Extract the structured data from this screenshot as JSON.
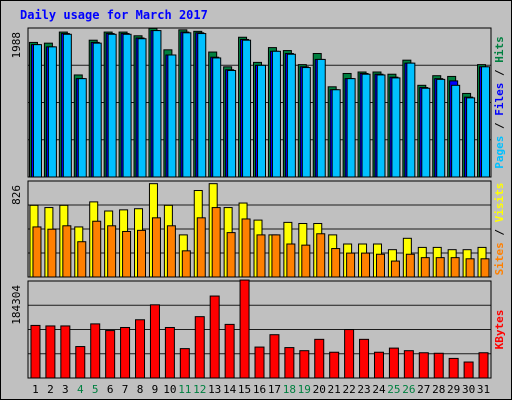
{
  "chart_data": [
    {
      "type": "bar",
      "title": "Daily usage for March 2017",
      "categories": [
        "1",
        "2",
        "3",
        "4",
        "5",
        "6",
        "7",
        "8",
        "9",
        "10",
        "11",
        "12",
        "13",
        "14",
        "15",
        "16",
        "17",
        "18",
        "19",
        "20",
        "21",
        "22",
        "23",
        "24",
        "25",
        "26",
        "27",
        "28",
        "29",
        "30",
        "31"
      ],
      "weekend_days": [
        "4",
        "5",
        "11",
        "12",
        "18",
        "19",
        "25",
        "26"
      ],
      "ymax_label": "1988",
      "ylim": [
        0,
        1988
      ],
      "legend": [
        "Pages",
        "Files",
        "Hits"
      ],
      "colors": {
        "Hits": "#008040",
        "Files": "#0000ff",
        "Pages": "#00c0ff"
      },
      "series": [
        {
          "name": "Hits",
          "values": [
            1820,
            1810,
            1960,
            1380,
            1850,
            1960,
            1960,
            1910,
            2010,
            1720,
            1990,
            1970,
            1690,
            1490,
            1890,
            1550,
            1750,
            1710,
            1520,
            1670,
            1220,
            1400,
            1420,
            1420,
            1390,
            1580,
            1240,
            1370,
            1360,
            1130,
            1520
          ]
        },
        {
          "name": "Files",
          "values": [
            1790,
            1760,
            1940,
            1330,
            1820,
            1940,
            1940,
            1880,
            1980,
            1650,
            1960,
            1950,
            1620,
            1450,
            1860,
            1510,
            1700,
            1670,
            1490,
            1590,
            1180,
            1330,
            1400,
            1390,
            1350,
            1540,
            1210,
            1330,
            1300,
            1080,
            1490
          ]
        },
        {
          "name": "Pages",
          "values": [
            1790,
            1760,
            1930,
            1330,
            1810,
            1930,
            1930,
            1870,
            1980,
            1650,
            1950,
            1940,
            1610,
            1440,
            1850,
            1510,
            1700,
            1660,
            1480,
            1590,
            1180,
            1330,
            1390,
            1380,
            1340,
            1540,
            1200,
            1320,
            1240,
            1070,
            1490
          ]
        }
      ]
    },
    {
      "type": "bar",
      "categories": [
        "1",
        "2",
        "3",
        "4",
        "5",
        "6",
        "7",
        "8",
        "9",
        "10",
        "11",
        "12",
        "13",
        "14",
        "15",
        "16",
        "17",
        "18",
        "19",
        "20",
        "21",
        "22",
        "23",
        "24",
        "25",
        "26",
        "27",
        "28",
        "29",
        "30",
        "31"
      ],
      "ymax_label": "826",
      "ylim": [
        0,
        826
      ],
      "legend": [
        "Sites",
        "Visits"
      ],
      "colors": {
        "Visits": "#ffff00",
        "Sites": "#ff8000"
      },
      "series": [
        {
          "name": "Visits",
          "values": [
            630,
            610,
            630,
            440,
            660,
            580,
            590,
            600,
            820,
            630,
            370,
            760,
            820,
            610,
            650,
            500,
            370,
            480,
            470,
            470,
            370,
            290,
            290,
            290,
            240,
            340,
            260,
            260,
            240,
            240,
            260
          ]
        },
        {
          "name": "Sites",
          "values": [
            440,
            420,
            450,
            310,
            490,
            450,
            400,
            410,
            520,
            450,
            230,
            520,
            610,
            390,
            510,
            370,
            370,
            290,
            280,
            380,
            250,
            210,
            210,
            200,
            140,
            200,
            170,
            170,
            170,
            160,
            160
          ]
        }
      ]
    },
    {
      "type": "bar",
      "categories": [
        "1",
        "2",
        "3",
        "4",
        "5",
        "6",
        "7",
        "8",
        "9",
        "10",
        "11",
        "12",
        "13",
        "14",
        "15",
        "16",
        "17",
        "18",
        "19",
        "20",
        "21",
        "22",
        "23",
        "24",
        "25",
        "26",
        "27",
        "28",
        "29",
        "30",
        "31"
      ],
      "ymax_label": "184304",
      "ylim": [
        0,
        184304
      ],
      "legend": [
        "KBytes"
      ],
      "colors": {
        "KBytes": "#ff0000"
      },
      "series": [
        {
          "name": "KBytes",
          "values": [
            102000,
            101000,
            101000,
            61000,
            105000,
            92000,
            98000,
            113000,
            142000,
            98000,
            57000,
            119000,
            159000,
            104000,
            190000,
            60000,
            84000,
            59000,
            53000,
            75000,
            50000,
            94000,
            75000,
            50000,
            58000,
            53000,
            49000,
            48000,
            38000,
            31000,
            49000
          ]
        }
      ]
    }
  ]
}
